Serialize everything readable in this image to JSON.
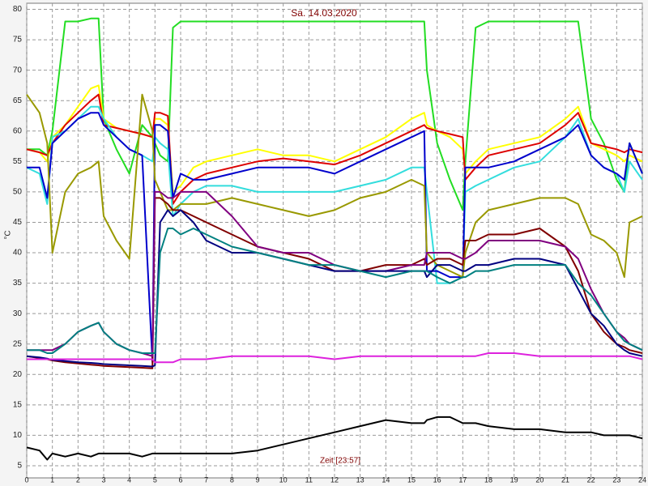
{
  "chart_data": {
    "type": "line",
    "title": "Sa. 14.03.2020",
    "x_label": "Zeit [23:57]",
    "y_label": "°C",
    "xlim": [
      0,
      24
    ],
    "xticks": [
      0,
      1,
      2,
      3,
      4,
      5,
      6,
      7,
      8,
      9,
      10,
      11,
      12,
      13,
      14,
      15,
      16,
      17,
      18,
      19,
      20,
      21,
      22,
      23,
      24
    ],
    "ylim": [
      3,
      81
    ],
    "yticks": [
      5,
      10,
      15,
      20,
      25,
      30,
      35,
      40,
      45,
      50,
      55,
      60,
      65,
      70,
      75,
      80
    ],
    "grid": true,
    "x": [
      0,
      0.5,
      0.8,
      1,
      1.5,
      2,
      2.5,
      2.8,
      3,
      3.5,
      4,
      4.5,
      4.9,
      5,
      5.2,
      5.5,
      5.7,
      6,
      6.5,
      7,
      8,
      9,
      10,
      11,
      12,
      13,
      14,
      15,
      15.5,
      15.6,
      16,
      16.5,
      17,
      17.1,
      17.5,
      18,
      19,
      20,
      21,
      21.5,
      22,
      22.5,
      23,
      23.3,
      23.5,
      24
    ],
    "series": [
      {
        "color": "#22dd22",
        "values": [
          57,
          57,
          56,
          60,
          78,
          78,
          78.5,
          78.5,
          62,
          57,
          53,
          61,
          59,
          58,
          56,
          55,
          77,
          78,
          78,
          78,
          78,
          78,
          78,
          78,
          78,
          78,
          78,
          78,
          78,
          70,
          58,
          52,
          47,
          55,
          77,
          78,
          78,
          78,
          78,
          78,
          62,
          58,
          52,
          50,
          58,
          53
        ]
      },
      {
        "color": "#ffff00",
        "values": [
          57,
          56.5,
          55,
          59,
          61,
          64,
          67,
          67.5,
          62,
          60.5,
          60,
          59.5,
          59,
          62,
          62,
          61,
          50,
          51,
          54,
          55,
          56,
          57,
          56,
          56,
          55,
          57,
          59,
          62,
          63,
          61,
          60,
          59,
          57,
          53,
          55,
          57,
          58,
          59,
          62,
          64,
          58,
          57,
          56,
          55,
          56,
          55
        ]
      },
      {
        "color": "#dd0000",
        "values": [
          57,
          56.5,
          56,
          58,
          61,
          63,
          65,
          66,
          61,
          60.5,
          60,
          59.5,
          59,
          63,
          63,
          62.5,
          48,
          50,
          52,
          53,
          54,
          55,
          55.5,
          55,
          54.5,
          56,
          58,
          60,
          61,
          60.5,
          60,
          59.5,
          59,
          52,
          54,
          56,
          57,
          58,
          61,
          63,
          58,
          57.5,
          57,
          56.5,
          57,
          56.5
        ]
      },
      {
        "color": "#33dddd",
        "values": [
          54,
          53,
          48,
          59,
          60,
          62,
          64,
          64,
          62,
          59,
          57,
          56,
          55,
          59,
          58,
          57,
          46,
          48,
          50,
          51,
          51,
          50,
          50,
          50,
          50,
          51,
          52,
          54,
          54,
          50,
          35,
          35,
          36,
          50,
          51,
          52,
          54,
          55,
          59,
          62,
          56,
          54,
          53,
          50,
          55,
          52
        ]
      },
      {
        "color": "#0000cc",
        "values": [
          54,
          54,
          49,
          58,
          60,
          62,
          63,
          63,
          61,
          59,
          57,
          56,
          22,
          61,
          61,
          60,
          49,
          53,
          52,
          52,
          53,
          54,
          54,
          54,
          53,
          55,
          57,
          59,
          60,
          37,
          37,
          36,
          36,
          54,
          54,
          54,
          55,
          57,
          59,
          61,
          56,
          54,
          53,
          52,
          58,
          53
        ]
      },
      {
        "color": "#999900",
        "values": [
          66,
          63,
          58,
          40,
          50,
          53,
          54,
          55,
          46,
          42,
          39,
          66,
          60,
          52,
          50,
          47,
          47,
          48,
          48,
          48,
          49,
          48,
          47,
          46,
          47,
          49,
          50,
          52,
          51,
          40,
          38,
          37,
          36,
          40,
          45,
          47,
          48,
          49,
          49,
          48,
          43,
          42,
          40,
          36,
          45,
          46
        ]
      },
      {
        "color": "#800000",
        "values": [
          23,
          22.7,
          22.5,
          22.3,
          22,
          21.8,
          21.6,
          21.5,
          21.4,
          21.3,
          21.2,
          21.1,
          21,
          49,
          49,
          48,
          47,
          47,
          46,
          45,
          43,
          41,
          40,
          39,
          37,
          37,
          38,
          38,
          39,
          38,
          39,
          39,
          38,
          42,
          42,
          43,
          43,
          44,
          41,
          37,
          30,
          27,
          25,
          24.5,
          24,
          23.5
        ]
      },
      {
        "color": "#800080",
        "values": [
          24,
          24,
          24,
          24,
          25,
          27,
          28,
          28.5,
          27,
          25,
          24,
          23.5,
          23,
          50,
          50,
          49,
          49,
          50,
          50,
          50,
          46,
          41,
          40,
          40,
          38,
          37,
          37,
          38,
          38,
          40,
          40,
          40,
          39,
          39,
          40,
          42,
          42,
          42,
          41,
          39,
          34,
          30,
          27,
          26,
          25,
          24
        ]
      },
      {
        "color": "#000080",
        "values": [
          23,
          22.8,
          22.6,
          22.4,
          22.2,
          22,
          21.9,
          21.8,
          21.7,
          21.6,
          21.5,
          21.4,
          21.3,
          21.5,
          45,
          47,
          46,
          47,
          45,
          42,
          40,
          40,
          39,
          38,
          37,
          37,
          37,
          37,
          37,
          36,
          38,
          38,
          37,
          37,
          38,
          38,
          39,
          39,
          38,
          34,
          30,
          28,
          25,
          24,
          23.5,
          23
        ]
      },
      {
        "color": "#008080",
        "values": [
          24,
          24,
          23.5,
          23.5,
          25,
          27,
          28,
          28.5,
          27,
          25,
          24,
          23.5,
          23.5,
          23.5,
          40,
          44,
          44,
          43,
          44,
          43,
          41,
          40,
          39,
          38,
          38,
          37,
          36,
          37,
          37,
          37,
          36,
          35,
          36,
          36,
          37,
          37,
          38,
          38,
          38,
          35,
          33,
          30,
          27,
          25.5,
          25,
          24
        ]
      },
      {
        "color": "#dd22dd",
        "values": [
          22.5,
          22.5,
          22.5,
          22.5,
          22.5,
          22.5,
          22.5,
          22.5,
          22.5,
          22.5,
          22.5,
          22.5,
          22.5,
          22,
          22,
          22,
          22,
          22.5,
          22.5,
          22.5,
          23,
          23,
          23,
          23,
          22.5,
          23,
          23,
          23,
          23,
          23,
          23,
          23,
          23,
          23,
          23,
          23.5,
          23.5,
          23,
          23,
          23,
          23,
          23,
          23,
          23,
          23,
          22.5
        ]
      },
      {
        "color": "#000000",
        "values": [
          8,
          7.5,
          6,
          7,
          6.5,
          7,
          6.5,
          7,
          7,
          7,
          7,
          6.5,
          7,
          7,
          7,
          7,
          7,
          7,
          7,
          7,
          7,
          7.5,
          8.5,
          9.5,
          10.5,
          11.5,
          12.5,
          12,
          12,
          12.5,
          13,
          13,
          12,
          12,
          12,
          11.5,
          11,
          11,
          10.5,
          10.5,
          10.5,
          10,
          10,
          10,
          10,
          9.5
        ]
      }
    ]
  }
}
